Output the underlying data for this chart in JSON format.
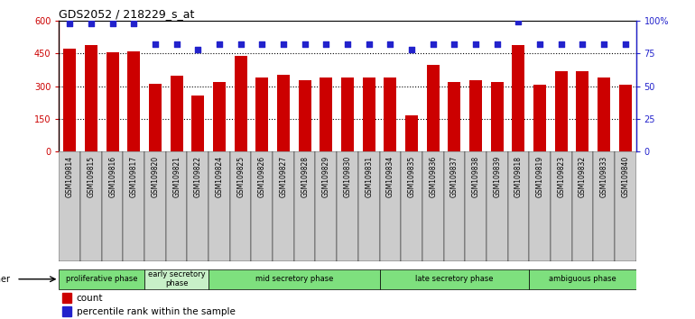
{
  "title": "GDS2052 / 218229_s_at",
  "samples": [
    "GSM109814",
    "GSM109815",
    "GSM109816",
    "GSM109817",
    "GSM109820",
    "GSM109821",
    "GSM109822",
    "GSM109824",
    "GSM109825",
    "GSM109826",
    "GSM109827",
    "GSM109828",
    "GSM109829",
    "GSM109830",
    "GSM109831",
    "GSM109834",
    "GSM109835",
    "GSM109836",
    "GSM109837",
    "GSM109838",
    "GSM109839",
    "GSM109818",
    "GSM109819",
    "GSM109823",
    "GSM109832",
    "GSM109833",
    "GSM109840"
  ],
  "counts": [
    470,
    490,
    455,
    460,
    310,
    348,
    258,
    318,
    440,
    338,
    352,
    328,
    338,
    338,
    338,
    338,
    168,
    398,
    318,
    328,
    318,
    490,
    308,
    370,
    370,
    340,
    308
  ],
  "percentile": [
    98,
    98,
    98,
    98,
    82,
    82,
    78,
    82,
    82,
    82,
    82,
    82,
    82,
    82,
    82,
    82,
    78,
    82,
    82,
    82,
    82,
    99,
    82,
    82,
    82,
    82,
    82
  ],
  "phases": [
    {
      "label": "proliferative phase",
      "start": 0,
      "end": 4,
      "color": "#7EE07E"
    },
    {
      "label": "early secretory\nphase",
      "start": 4,
      "end": 7,
      "color": "#c8f0c8"
    },
    {
      "label": "mid secretory phase",
      "start": 7,
      "end": 15,
      "color": "#7EE07E"
    },
    {
      "label": "late secretory phase",
      "start": 15,
      "end": 22,
      "color": "#7EE07E"
    },
    {
      "label": "ambiguous phase",
      "start": 22,
      "end": 27,
      "color": "#7EE07E"
    }
  ],
  "bar_color": "#cc0000",
  "dot_color": "#2222cc",
  "tick_bg_color": "#cccccc",
  "ylim_left": [
    0,
    600
  ],
  "ylim_right": [
    0,
    100
  ],
  "yticks_left": [
    0,
    150,
    300,
    450,
    600
  ],
  "ytick_labels_left": [
    "0",
    "150",
    "300",
    "450",
    "600"
  ],
  "yticks_right": [
    0,
    25,
    50,
    75,
    100
  ],
  "ytick_labels_right": [
    "0",
    "25",
    "50",
    "75",
    "100%"
  ],
  "gridlines_at": [
    150,
    300,
    450
  ]
}
